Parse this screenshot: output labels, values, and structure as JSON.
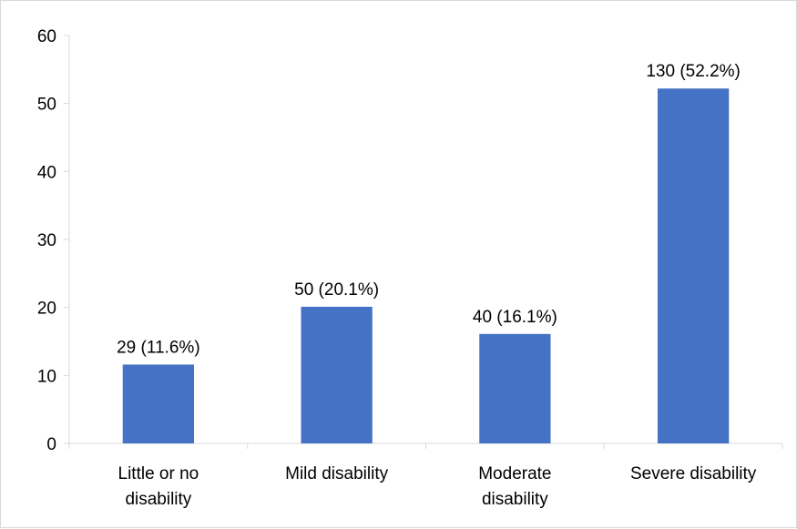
{
  "chart_data": {
    "type": "bar",
    "categories": [
      [
        "Little or no",
        "disability"
      ],
      [
        "Mild disability"
      ],
      [
        "Moderate",
        "disability"
      ],
      [
        "Severe disability"
      ]
    ],
    "values": [
      11.6,
      20.1,
      16.1,
      52.2
    ],
    "data_labels": [
      "29 (11.6%)",
      "50 (20.1%)",
      "40 (16.1%)",
      "130 (52.2%)"
    ],
    "bar_color": "#4472c4",
    "ylim": [
      0,
      60
    ],
    "yticks": [
      0,
      10,
      20,
      30,
      40,
      50,
      60
    ],
    "grid": false,
    "legend": "none"
  }
}
